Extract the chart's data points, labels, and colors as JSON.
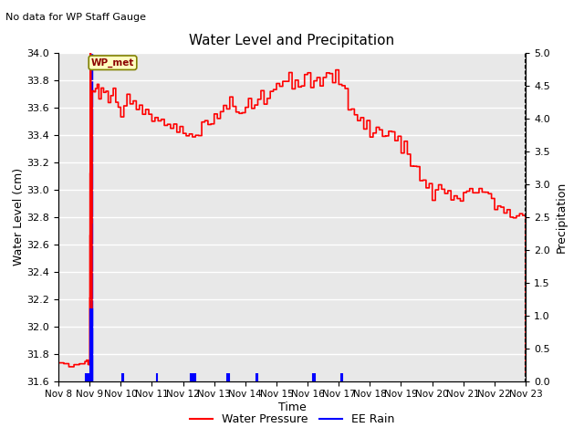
{
  "title": "Water Level and Precipitation",
  "subtitle": "No data for WP Staff Gauge",
  "ylabel_left": "Water Level (cm)",
  "ylabel_right": "Precipitation",
  "xlabel": "Time",
  "annotation": "WP_met",
  "ylim_left": [
    31.6,
    34.0
  ],
  "ylim_right": [
    0.0,
    5.0
  ],
  "yticks_left": [
    31.6,
    31.8,
    32.0,
    32.2,
    32.4,
    32.6,
    32.8,
    33.0,
    33.2,
    33.4,
    33.6,
    33.8,
    34.0
  ],
  "yticks_right": [
    0.0,
    0.5,
    1.0,
    1.5,
    2.0,
    2.5,
    3.0,
    3.5,
    4.0,
    4.5,
    5.0
  ],
  "xtick_labels": [
    "Nov 8",
    "Nov 9",
    "Nov 10",
    "Nov 11",
    "Nov 12",
    "Nov 13",
    "Nov 14",
    "Nov 15",
    "Nov 16",
    "Nov 17",
    "Nov 18",
    "Nov 19",
    "Nov 20",
    "Nov 21",
    "Nov 22",
    "Nov 23"
  ],
  "bg_color": "#e8e8e8",
  "legend_red_label": "Water Pressure",
  "legend_blue_label": "EE Rain",
  "water_pressure_color": "red",
  "ee_rain_color": "blue"
}
